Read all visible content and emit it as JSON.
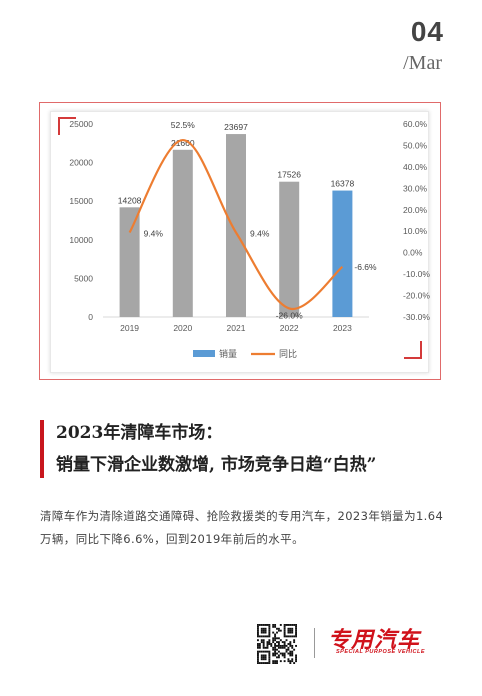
{
  "header": {
    "issue_number": "04",
    "issue_month": "/Mar"
  },
  "headline": {
    "line1": "2023年清障车市场：",
    "line2": "销量下滑企业数激增, 市场竞争日趋“白热”"
  },
  "body": {
    "paragraph": "清障车作为清除道路交通障碍、抢险救援类的专用汽车，2023年销量为1.64万辆，同比下降6.6%，回到2019年前后的水平。"
  },
  "footer": {
    "brand_name": "专用汽车",
    "brand_sub": "SPECIAL PURPOSE VEHICLE"
  },
  "chart_data": {
    "type": "bar",
    "categories": [
      "2019",
      "2020",
      "2021",
      "2022",
      "2023"
    ],
    "series": [
      {
        "name": "销量",
        "type": "bar",
        "values": [
          14208,
          21660,
          23697,
          17526,
          16378
        ],
        "colors": [
          "#a6a6a6",
          "#a6a6a6",
          "#a6a6a6",
          "#a6a6a6",
          "#5b9bd5"
        ],
        "labels": [
          "14208",
          "21660",
          "23697",
          "17526",
          "16378"
        ]
      },
      {
        "name": "同比",
        "type": "line",
        "values": [
          9.4,
          52.5,
          9.4,
          -26.0,
          -6.6
        ],
        "color": "#ed7d31",
        "labels": [
          "9.4%",
          "52.5%",
          "9.4%",
          "-26.0%",
          "-6.6%"
        ]
      }
    ],
    "y_left": {
      "ticks": [
        "0",
        "5000",
        "10000",
        "15000",
        "20000",
        "25000"
      ],
      "ylim": [
        0,
        25000
      ]
    },
    "y_right": {
      "ticks": [
        "-30.0%",
        "-20.0%",
        "-10.0%",
        "0.0%",
        "10.0%",
        "20.0%",
        "30.0%",
        "40.0%",
        "50.0%",
        "60.0%"
      ],
      "ylim": [
        -30,
        60
      ]
    },
    "legend": [
      "销量",
      "同比"
    ],
    "legend_position": "bottom",
    "grid": false
  }
}
